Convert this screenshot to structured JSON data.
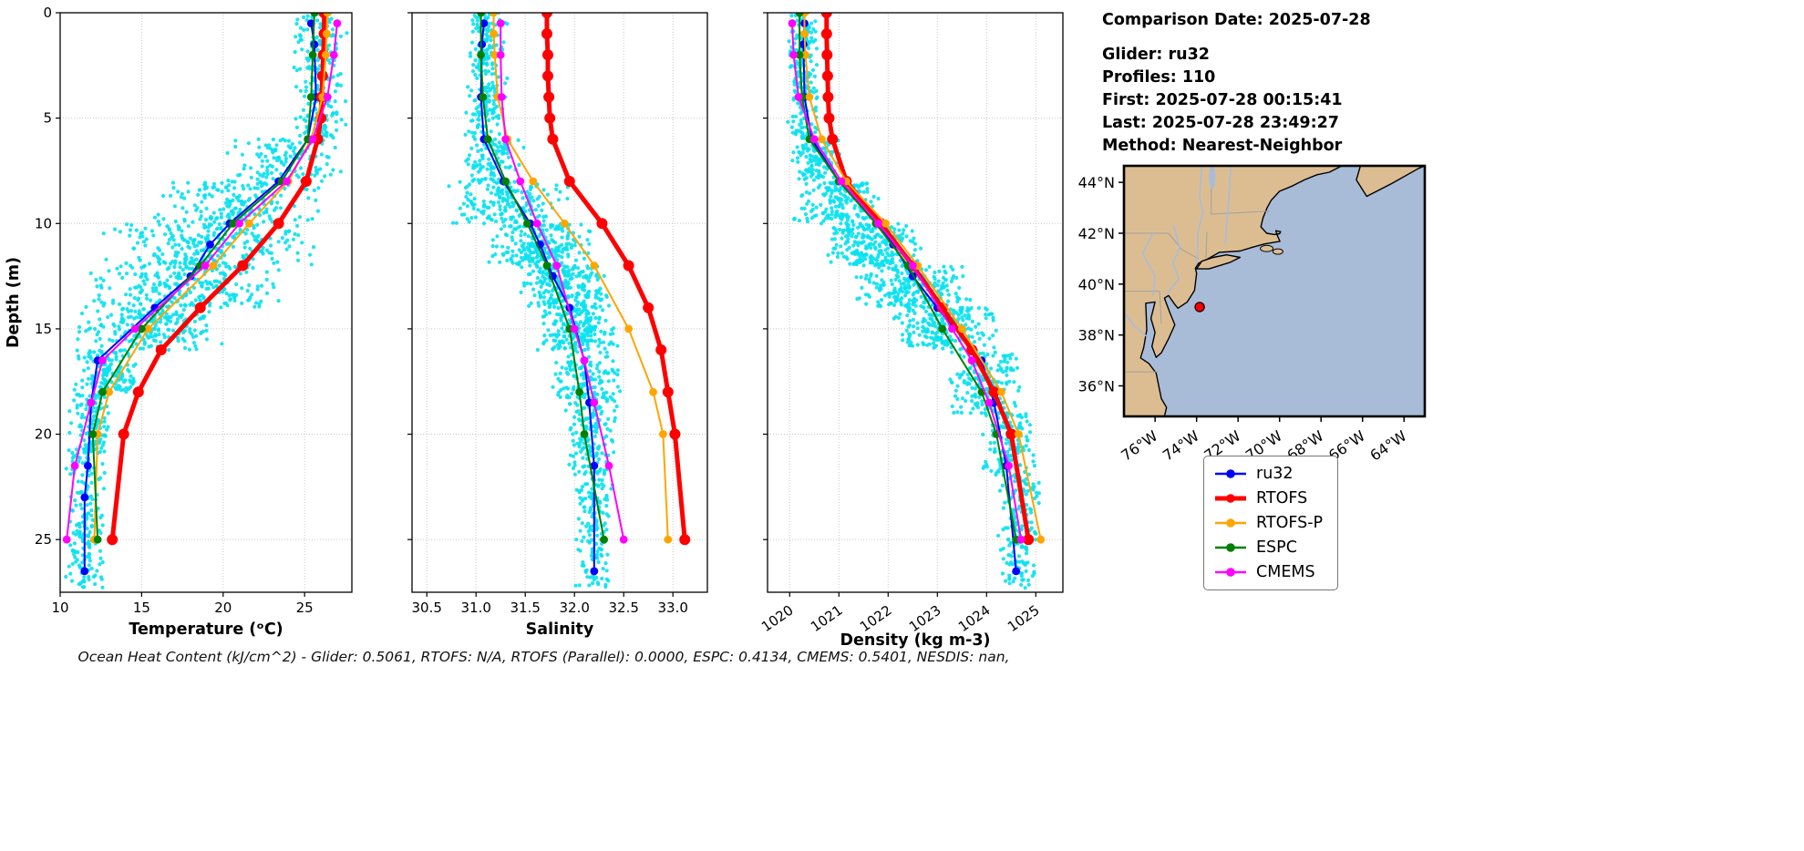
{
  "info_panel": {
    "comparison_date": "Comparison Date: 2025-07-28",
    "glider": "Glider: ru32",
    "profiles": "Profiles: 110",
    "first": "First: 2025-07-28 00:15:41",
    "last": "Last: 2025-07-28 23:49:27",
    "method": "Method: Nearest-Neighbor"
  },
  "footer": "Ocean Heat Content (kJ/cm^2) - Glider: 0.5061,  RTOFS: N/A,  RTOFS (Parallel): 0.0000,  ESPC: 0.4134,  CMEMS: 0.5401,  NESDIS: nan,",
  "legend": {
    "items": [
      {
        "label": "ru32",
        "color": "#0000ff",
        "lw": 2.5
      },
      {
        "label": "RTOFS",
        "color": "#ff0000",
        "lw": 5
      },
      {
        "label": "RTOFS-P",
        "color": "#ffa500",
        "lw": 2.5
      },
      {
        "label": "ESPC",
        "color": "#008000",
        "lw": 2.5
      },
      {
        "label": "CMEMS",
        "color": "#ff00ff",
        "lw": 2.5
      }
    ]
  },
  "chart_common": {
    "ylabel": "Depth (m)",
    "ylim": [
      0,
      27.5
    ],
    "ytick_values": [
      0,
      5,
      10,
      15,
      20,
      25
    ],
    "ytick_labels": [
      "0",
      "5",
      "10",
      "15",
      "20",
      "25"
    ],
    "scatter_color": "#0ce2ef",
    "scatter_name": "glider-observations"
  },
  "chart_data": [
    {
      "id": "temperature",
      "type": "scatter",
      "xlabel": "Temperature (ᵒC)",
      "xlim": [
        10,
        27.9
      ],
      "xtick_values": [
        10,
        15,
        20,
        25
      ],
      "xtick_labels": [
        "10",
        "15",
        "20",
        "25"
      ],
      "rotate_xtick_labels": false,
      "series": [
        {
          "name": "ru32",
          "color": "#0000ff",
          "lw": 2,
          "depths": [
            0.5,
            1.5,
            4,
            6,
            8,
            10,
            11,
            12.5,
            14,
            16.5,
            18.5,
            21.5,
            23,
            26.5
          ],
          "values": [
            25.4,
            25.6,
            25.7,
            25.2,
            23.4,
            20.4,
            19.2,
            18.0,
            15.8,
            12.3,
            11.9,
            11.7,
            11.5,
            11.5
          ]
        },
        {
          "name": "RTOFS",
          "color": "#ff0000",
          "lw": 5,
          "depths": [
            0,
            1,
            2,
            3,
            4,
            5,
            6,
            8,
            10,
            12,
            14,
            16,
            18,
            20,
            25
          ],
          "values": [
            26.2,
            26.2,
            26.15,
            26.1,
            26.05,
            26.0,
            25.8,
            25.1,
            23.4,
            21.2,
            18.6,
            16.2,
            14.8,
            13.9,
            13.2
          ]
        },
        {
          "name": "RTOFS-P",
          "color": "#ffa500",
          "lw": 2,
          "depths": [
            0,
            1,
            2,
            4,
            6,
            8,
            10,
            12,
            15,
            18,
            20,
            25
          ],
          "values": [
            26.4,
            26.35,
            26.3,
            26.1,
            25.4,
            24.0,
            21.6,
            19.4,
            15.4,
            13.0,
            12.3,
            12.1
          ]
        },
        {
          "name": "ESPC",
          "color": "#008000",
          "lw": 2,
          "depths": [
            0,
            2,
            4,
            6,
            8,
            10,
            12,
            15,
            18,
            20,
            25
          ],
          "values": [
            25.6,
            25.5,
            25.4,
            25.2,
            23.6,
            20.6,
            18.6,
            15.0,
            12.6,
            12.0,
            12.3
          ]
        },
        {
          "name": "CMEMS",
          "color": "#ff00ff",
          "lw": 2,
          "depths": [
            0.5,
            2,
            4,
            6,
            8,
            10,
            12,
            15,
            16.5,
            18.5,
            21.5,
            25
          ],
          "values": [
            27.0,
            26.8,
            26.4,
            25.5,
            23.9,
            21.0,
            18.9,
            14.6,
            12.6,
            11.9,
            10.9,
            10.4
          ]
        }
      ],
      "scatter_bands": [
        [
          0,
          6,
          24.2,
          27.7,
          230
        ],
        [
          6,
          8,
          20,
          27.3,
          120
        ],
        [
          8,
          10,
          15,
          26.5,
          190
        ],
        [
          10,
          12,
          12.5,
          26,
          250
        ],
        [
          12,
          14,
          11.5,
          24,
          250
        ],
        [
          14,
          16,
          11,
          20,
          210
        ],
        [
          16,
          18,
          10.8,
          15,
          150
        ],
        [
          18,
          21,
          10.5,
          13.2,
          140
        ],
        [
          21,
          27.3,
          10.3,
          12.8,
          170
        ]
      ]
    },
    {
      "id": "salinity",
      "type": "scatter",
      "xlabel": "Salinity",
      "xlim": [
        30.35,
        33.35
      ],
      "xtick_values": [
        30.5,
        31.0,
        31.5,
        32.0,
        32.5,
        33.0
      ],
      "xtick_labels": [
        "30.5",
        "31.0",
        "31.5",
        "32.0",
        "32.5",
        "33.0"
      ],
      "rotate_xtick_labels": false,
      "series": [
        {
          "name": "ru32",
          "color": "#0000ff",
          "lw": 2,
          "depths": [
            0.5,
            1.5,
            4,
            6,
            8,
            10,
            11,
            12.5,
            14,
            16.5,
            18.5,
            21.5,
            26.5
          ],
          "values": [
            31.08,
            31.06,
            31.05,
            31.08,
            31.28,
            31.55,
            31.65,
            31.78,
            31.95,
            32.1,
            32.15,
            32.2,
            32.2
          ]
        },
        {
          "name": "RTOFS",
          "color": "#ff0000",
          "lw": 5,
          "depths": [
            0,
            1,
            2,
            3,
            4,
            5,
            6,
            8,
            10,
            12,
            14,
            16,
            18,
            20,
            25
          ],
          "values": [
            31.72,
            31.72,
            31.73,
            31.73,
            31.74,
            31.75,
            31.78,
            31.95,
            32.28,
            32.55,
            32.75,
            32.88,
            32.95,
            33.02,
            33.12
          ]
        },
        {
          "name": "RTOFS-P",
          "color": "#ffa500",
          "lw": 2,
          "depths": [
            0,
            1,
            2,
            4,
            6,
            8,
            10,
            12,
            15,
            18,
            20,
            25
          ],
          "values": [
            31.18,
            31.18,
            31.19,
            31.22,
            31.32,
            31.58,
            31.9,
            32.2,
            32.55,
            32.8,
            32.9,
            32.95
          ]
        },
        {
          "name": "ESPC",
          "color": "#008000",
          "lw": 2,
          "depths": [
            0,
            2,
            4,
            6,
            8,
            10,
            12,
            15,
            18,
            20,
            25
          ],
          "values": [
            31.05,
            31.05,
            31.07,
            31.12,
            31.3,
            31.52,
            31.72,
            31.95,
            32.05,
            32.1,
            32.3
          ]
        },
        {
          "name": "CMEMS",
          "color": "#ff00ff",
          "lw": 2,
          "depths": [
            0.5,
            2,
            4,
            6,
            8,
            10,
            12,
            15,
            16.5,
            18.5,
            21.5,
            25
          ],
          "values": [
            31.25,
            31.25,
            31.26,
            31.3,
            31.45,
            31.62,
            31.82,
            32.0,
            32.1,
            32.2,
            32.35,
            32.5
          ]
        }
      ],
      "scatter_bands": [
        [
          0,
          6,
          30.88,
          31.32,
          210
        ],
        [
          6,
          8,
          30.85,
          31.5,
          100
        ],
        [
          8,
          10,
          30.7,
          31.95,
          170
        ],
        [
          10,
          12,
          31.1,
          32.2,
          230
        ],
        [
          12,
          14,
          31.4,
          32.4,
          230
        ],
        [
          14,
          16,
          31.6,
          32.5,
          200
        ],
        [
          16,
          19,
          31.75,
          32.5,
          160
        ],
        [
          19,
          22,
          31.9,
          32.45,
          130
        ],
        [
          22,
          27.3,
          32.0,
          32.4,
          150
        ]
      ]
    },
    {
      "id": "density",
      "type": "scatter",
      "xlabel": "Density (kg m-3)",
      "xlim": [
        1019.55,
        1025.55
      ],
      "xtick_values": [
        1020,
        1021,
        1022,
        1023,
        1024,
        1025
      ],
      "xtick_labels": [
        "1020",
        "1021",
        "1022",
        "1023",
        "1024",
        "1025"
      ],
      "rotate_xtick_labels": true,
      "series": [
        {
          "name": "ru32",
          "color": "#0000ff",
          "lw": 2,
          "depths": [
            0.5,
            1.5,
            4,
            6,
            8,
            10,
            11,
            12.5,
            14,
            16.5,
            18.5,
            21.5,
            26.5
          ],
          "values": [
            1020.3,
            1020.28,
            1020.3,
            1020.45,
            1021.0,
            1021.8,
            1022.1,
            1022.5,
            1023.0,
            1023.9,
            1024.15,
            1024.4,
            1024.6
          ]
        },
        {
          "name": "RTOFS",
          "color": "#ff0000",
          "lw": 5,
          "depths": [
            0,
            1,
            2,
            3,
            4,
            5,
            6,
            8,
            10,
            12,
            14,
            16,
            18,
            20,
            25
          ],
          "values": [
            1020.75,
            1020.75,
            1020.76,
            1020.77,
            1020.78,
            1020.8,
            1020.87,
            1021.15,
            1021.85,
            1022.5,
            1023.1,
            1023.7,
            1024.15,
            1024.5,
            1024.85
          ]
        },
        {
          "name": "RTOFS-P",
          "color": "#ffa500",
          "lw": 2,
          "depths": [
            0,
            1,
            2,
            4,
            6,
            8,
            10,
            12,
            15,
            18,
            20,
            25
          ],
          "values": [
            1020.3,
            1020.3,
            1020.32,
            1020.4,
            1020.65,
            1021.15,
            1021.95,
            1022.6,
            1023.5,
            1024.3,
            1024.65,
            1025.1
          ]
        },
        {
          "name": "ESPC",
          "color": "#008000",
          "lw": 2,
          "depths": [
            0,
            2,
            4,
            6,
            8,
            10,
            12,
            15,
            18,
            20,
            25
          ],
          "values": [
            1020.2,
            1020.2,
            1020.25,
            1020.4,
            1021.0,
            1021.75,
            1022.4,
            1023.1,
            1023.9,
            1024.2,
            1024.6
          ]
        },
        {
          "name": "CMEMS",
          "color": "#ff00ff",
          "lw": 2,
          "depths": [
            0.5,
            2,
            4,
            6,
            8,
            10,
            12,
            15,
            16.5,
            18.5,
            21.5,
            25
          ],
          "values": [
            1020.05,
            1020.08,
            1020.18,
            1020.5,
            1021.05,
            1021.8,
            1022.5,
            1023.3,
            1023.7,
            1024.05,
            1024.45,
            1024.7
          ]
        }
      ],
      "scatter_bands": [
        [
          0,
          6,
          1019.95,
          1020.6,
          210
        ],
        [
          6,
          8,
          1019.98,
          1021.1,
          110
        ],
        [
          8,
          10,
          1020.05,
          1021.9,
          170
        ],
        [
          10,
          12,
          1020.6,
          1022.7,
          230
        ],
        [
          12,
          14,
          1021.2,
          1023.7,
          230
        ],
        [
          14,
          16,
          1022.0,
          1024.3,
          210
        ],
        [
          16,
          19,
          1023.1,
          1024.8,
          170
        ],
        [
          19,
          22,
          1023.9,
          1025.0,
          140
        ],
        [
          22,
          27.3,
          1024.2,
          1025.15,
          160
        ]
      ]
    }
  ],
  "map": {
    "lat_tick_values": [
      44,
      42,
      40,
      38,
      36
    ],
    "lat_tick_labels": [
      "44°N",
      "42°N",
      "40°N",
      "38°N",
      "36°N"
    ],
    "lon_tick_values": [
      -76,
      -74,
      -72,
      -70,
      -68,
      -66,
      -64
    ],
    "lon_tick_labels": [
      "76°W",
      "74°W",
      "72°W",
      "70°W",
      "68°W",
      "66°W",
      "64°W"
    ],
    "extent": {
      "lon_min": -77.5,
      "lon_max": -63.0,
      "lat_min": 34.8,
      "lat_max": 44.65
    },
    "marker": {
      "lon": -73.85,
      "lat": 39.1,
      "color": "#ff0000"
    },
    "land_color": "#dcbd92",
    "ocean_color": "#a8bcd8",
    "border_color": "#a0a0a0"
  }
}
